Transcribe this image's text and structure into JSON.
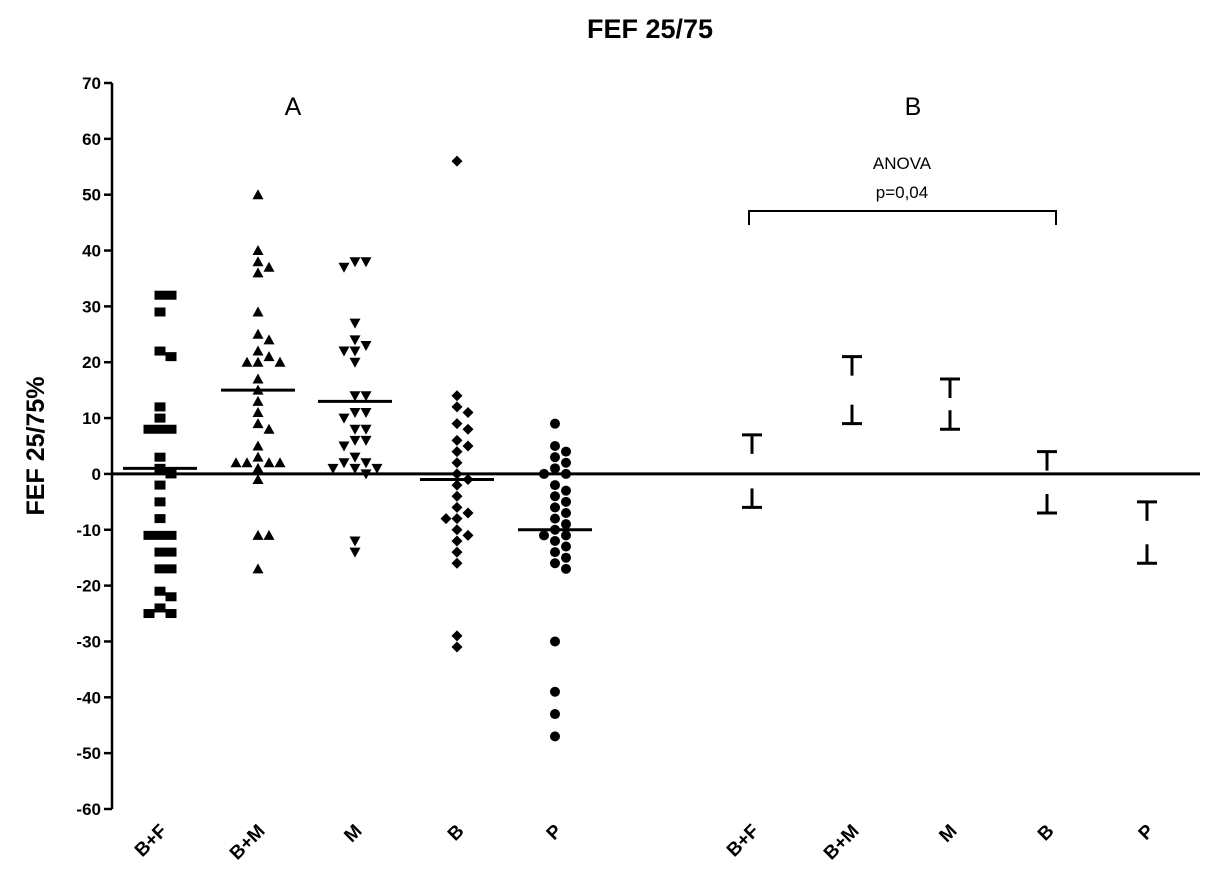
{
  "chart_data": {
    "type": "scatter",
    "title": "FEF 25/75",
    "ylabel": "FEF 25/75%",
    "xlabel": "",
    "ylim": [
      -60,
      70
    ],
    "yticks": [
      70,
      60,
      50,
      40,
      30,
      20,
      10,
      0,
      -10,
      -20,
      -30,
      -40,
      -50,
      -60
    ],
    "grid": false,
    "zero_line": true,
    "panels": [
      {
        "label": "A",
        "kind": "individual_points_with_mean",
        "categories": [
          "B+F",
          "B+M",
          "M",
          "B",
          "P"
        ],
        "series": [
          {
            "category": "B+F",
            "marker": "square",
            "mean": 1,
            "values": [
              32,
              32,
              29,
              22,
              21,
              12,
              10,
              8,
              8,
              8,
              3,
              1,
              0,
              -2,
              -5,
              -8,
              -11,
              -11,
              -11,
              -14,
              -14,
              -17,
              -17,
              -21,
              -22,
              -24,
              -25,
              -25
            ]
          },
          {
            "category": "B+M",
            "marker": "triangle-up",
            "mean": 15,
            "values": [
              50,
              40,
              38,
              37,
              36,
              29,
              25,
              24,
              22,
              21,
              20,
              20,
              20,
              17,
              15,
              13,
              11,
              9,
              8,
              5,
              3,
              2,
              2,
              2,
              2,
              1,
              -1,
              -11,
              -11,
              -17
            ]
          },
          {
            "category": "M",
            "marker": "triangle-down",
            "mean": 13,
            "values": [
              38,
              38,
              37,
              27,
              24,
              23,
              22,
              22,
              20,
              14,
              14,
              11,
              11,
              10,
              8,
              8,
              6,
              6,
              5,
              3,
              2,
              2,
              1,
              1,
              1,
              0,
              -12,
              -14
            ]
          },
          {
            "category": "B",
            "marker": "diamond",
            "mean": -1,
            "values": [
              56,
              14,
              12,
              11,
              9,
              8,
              6,
              5,
              4,
              2,
              0,
              -1,
              -2,
              -4,
              -6,
              -7,
              -8,
              -8,
              -10,
              -11,
              -12,
              -14,
              -16,
              -29,
              -31
            ]
          },
          {
            "category": "P",
            "marker": "circle",
            "mean": -10,
            "values": [
              9,
              5,
              4,
              3,
              2,
              1,
              0,
              0,
              -2,
              -3,
              -4,
              -5,
              -6,
              -7,
              -8,
              -9,
              -10,
              -11,
              -11,
              -12,
              -13,
              -14,
              -15,
              -16,
              -17,
              -30,
              -39,
              -43,
              -47
            ]
          }
        ]
      },
      {
        "label": "B",
        "kind": "mean_with_error_bars",
        "annotation": {
          "line1": "ANOVA",
          "line2": "p=0,04",
          "bracket_from": "B+F",
          "bracket_to": "B"
        },
        "categories": [
          "B+F",
          "B+M",
          "M",
          "B",
          "P"
        ],
        "series": [
          {
            "category": "B+F",
            "upper": 7,
            "lower": -6
          },
          {
            "category": "B+M",
            "upper": 21,
            "lower": 9
          },
          {
            "category": "M",
            "upper": 17,
            "lower": 8
          },
          {
            "category": "B",
            "upper": 4,
            "lower": -7
          },
          {
            "category": "P",
            "upper": -5,
            "lower": -16
          }
        ]
      }
    ]
  }
}
